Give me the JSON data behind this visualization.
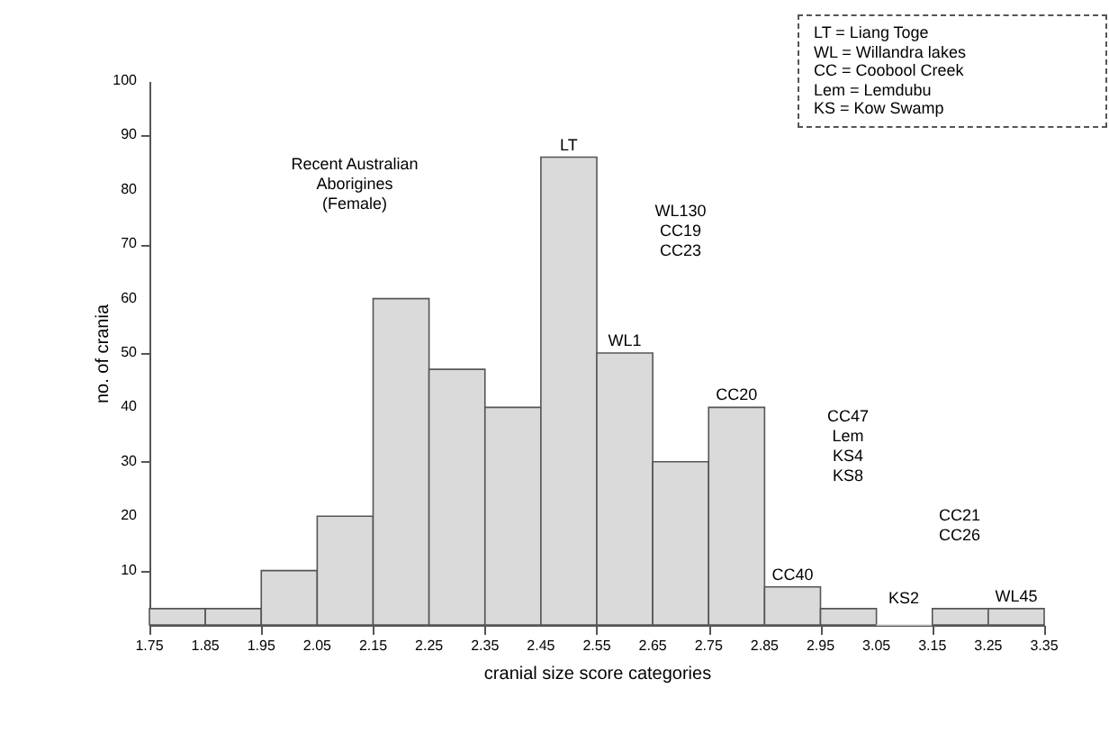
{
  "chart_data": {
    "type": "histogram",
    "xlabel": "cranial size score categories",
    "ylabel": "no. of crania",
    "bins": [
      1.75,
      1.85,
      1.95,
      2.05,
      2.15,
      2.25,
      2.35,
      2.45,
      2.55,
      2.65,
      2.75,
      2.85,
      2.95,
      3.05,
      3.15,
      3.25,
      3.35
    ],
    "values": [
      3,
      3,
      10,
      20,
      60,
      47,
      40,
      86,
      50,
      30,
      40,
      7,
      3,
      0,
      3,
      3
    ],
    "color": "#dadada",
    "xlim": [
      1.75,
      3.35
    ],
    "xticks": [
      1.75,
      1.85,
      1.95,
      2.05,
      2.15,
      2.25,
      2.35,
      2.45,
      2.55,
      2.65,
      2.75,
      2.85,
      2.95,
      3.05,
      3.15,
      3.25,
      3.35
    ],
    "ylim": [
      0,
      100
    ],
    "yticks": [
      10,
      20,
      30,
      40,
      50,
      60,
      70,
      80,
      90,
      100
    ],
    "grid": false,
    "annotations": [
      "Recent Australian\nAborigines\n(Female)",
      "LT = Liang Toge\nWL = Willandra lakes\nCC = Coobool Creek\nLem = Lemdubu\nKS = Kow Swamp",
      "WL130\nCC19\nCC23",
      "CC47\nLem\nKS4\nKS8",
      "KS2",
      "CC21\nCC26",
      {
        "text": "LT",
        "x": 2.5,
        "y": 86
      },
      {
        "text": "WL1",
        "x": 2.6,
        "y": 50
      },
      {
        "text": "CC20",
        "x": 2.8,
        "y": 40
      },
      {
        "text": "CC40",
        "x": 2.9,
        "y": 7
      },
      {
        "text": "WL45",
        "x": 3.3,
        "y": 3
      }
    ]
  }
}
